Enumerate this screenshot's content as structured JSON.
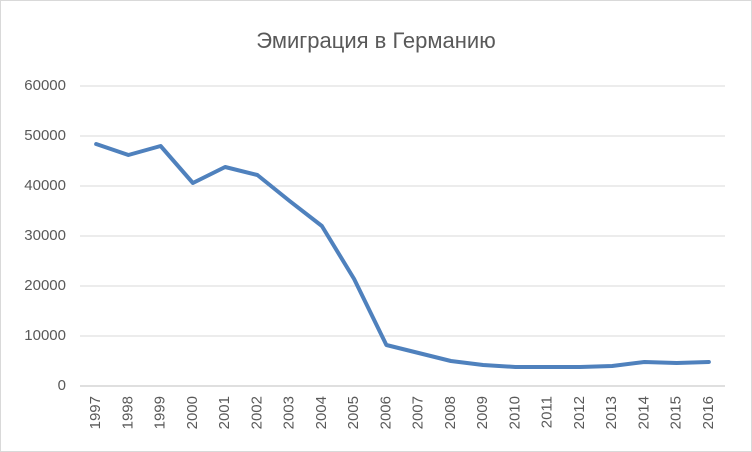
{
  "chart_data": {
    "type": "line",
    "title": "Эмиграция в Германию",
    "categories": [
      "1997",
      "1998",
      "1999",
      "2000",
      "2001",
      "2002",
      "2003",
      "2004",
      "2005",
      "2006",
      "2007",
      "2008",
      "2009",
      "2010",
      "2011",
      "2012",
      "2013",
      "2014",
      "2015",
      "2016"
    ],
    "values": [
      48400,
      46200,
      48000,
      40600,
      43800,
      42200,
      37000,
      32000,
      21400,
      8200,
      6600,
      5000,
      4200,
      3800,
      3800,
      3800,
      4000,
      4800,
      4600,
      4800
    ],
    "color": "#4f81bd",
    "ylim": [
      0,
      60000
    ],
    "yticks": [
      0,
      10000,
      20000,
      30000,
      40000,
      50000,
      60000
    ],
    "grid": true
  }
}
